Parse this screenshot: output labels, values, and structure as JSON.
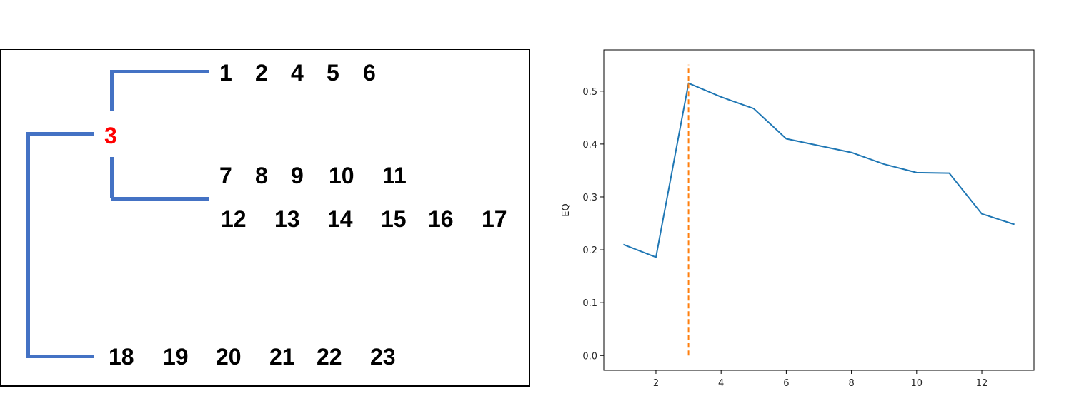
{
  "tree": {
    "split_label": "3",
    "split_color": "#ff0000",
    "bracket_color": "#4472c4",
    "group_a": [
      "1",
      "2",
      "4",
      "5",
      "6"
    ],
    "group_b": [
      "7",
      "8",
      "9",
      "10",
      "11"
    ],
    "group_c": [
      "12",
      "13",
      "14",
      "15",
      "16",
      "17"
    ],
    "group_d": [
      "18",
      "19",
      "20",
      "21",
      "22",
      "23"
    ]
  },
  "chart_data": {
    "type": "line",
    "title": "",
    "xlabel": "",
    "ylabel": "EQ",
    "xlim": [
      0.4,
      13.6
    ],
    "ylim": [
      -0.028,
      0.578
    ],
    "xticks": [
      2,
      4,
      6,
      8,
      10,
      12
    ],
    "yticks": [
      0.0,
      0.1,
      0.2,
      0.3,
      0.4,
      0.5
    ],
    "ytick_labels": [
      "0.0",
      "0.1",
      "0.2",
      "0.3",
      "0.4",
      "0.5"
    ],
    "grid": false,
    "series": [
      {
        "color": "#1f77b4",
        "x": [
          1,
          2,
          3,
          4,
          5,
          6,
          7,
          8,
          9,
          10,
          11,
          12,
          13
        ],
        "y": [
          0.21,
          0.186,
          0.515,
          0.489,
          0.467,
          0.41,
          0.397,
          0.384,
          0.362,
          0.346,
          0.345,
          0.268,
          0.248
        ]
      }
    ],
    "vline": {
      "x": 3,
      "y_range": [
        0.0,
        0.55
      ],
      "color": "#ff7f0e",
      "style": "dashed"
    }
  }
}
